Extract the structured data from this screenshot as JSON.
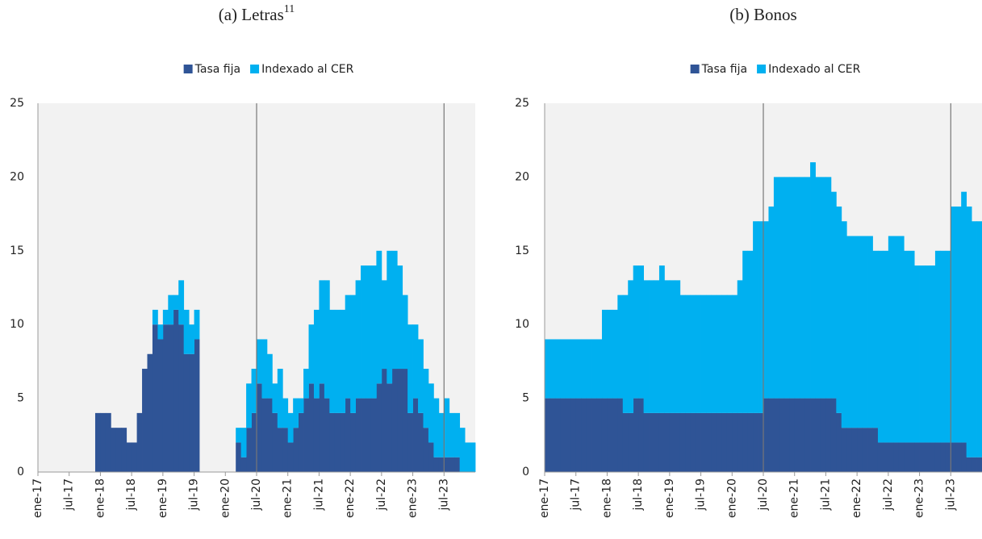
{
  "chart_data": [
    {
      "type": "bar",
      "stacked": true,
      "title": "(a) Letras",
      "title_superscript": "11",
      "categories": [
        "ene-17",
        null,
        null,
        null,
        null,
        null,
        "jul-17",
        null,
        null,
        null,
        null,
        null,
        "ene-18",
        null,
        null,
        null,
        null,
        null,
        "jul-18",
        null,
        null,
        null,
        null,
        null,
        "ene-19",
        null,
        null,
        null,
        null,
        null,
        "jul-19",
        null,
        null,
        null,
        null,
        null,
        "ene-20",
        null,
        null,
        null,
        null,
        null,
        "jul-20",
        null,
        null,
        null,
        null,
        null,
        "ene-21",
        null,
        null,
        null,
        null,
        null,
        "jul-21",
        null,
        null,
        null,
        null,
        null,
        "ene-22",
        null,
        null,
        null,
        null,
        null,
        "jul-22",
        null,
        null,
        null,
        null,
        null,
        "ene-23",
        null,
        null,
        null,
        null,
        null,
        "jul-23",
        null,
        null,
        null,
        null,
        null
      ],
      "series": [
        {
          "name": "Tasa fija",
          "color": "#2f5496",
          "values": [
            0,
            0,
            0,
            0,
            0,
            0,
            0,
            0,
            0,
            0,
            0,
            4,
            4,
            4,
            3,
            3,
            3,
            2,
            2,
            4,
            7,
            8,
            10,
            9,
            10,
            10,
            11,
            10,
            8,
            8,
            9,
            0,
            0,
            0,
            0,
            0,
            0,
            0,
            2,
            1,
            3,
            4,
            6,
            5,
            5,
            4,
            3,
            3,
            2,
            3,
            4,
            5,
            6,
            5,
            6,
            5,
            4,
            4,
            4,
            5,
            4,
            5,
            5,
            5,
            5,
            6,
            7,
            6,
            7,
            7,
            7,
            4,
            5,
            4,
            3,
            2,
            1,
            1,
            1,
            1,
            1,
            0,
            0,
            0
          ]
        },
        {
          "name": "Indexado al CER",
          "color": "#00b0f0",
          "values": [
            0,
            0,
            0,
            0,
            0,
            0,
            0,
            0,
            0,
            0,
            0,
            0,
            0,
            0,
            0,
            0,
            0,
            0,
            0,
            0,
            0,
            0,
            1,
            1,
            1,
            2,
            1,
            3,
            3,
            2,
            2,
            0,
            0,
            0,
            0,
            0,
            0,
            0,
            1,
            2,
            3,
            3,
            3,
            4,
            3,
            2,
            4,
            2,
            2,
            2,
            1,
            2,
            4,
            6,
            7,
            8,
            7,
            7,
            7,
            7,
            8,
            8,
            9,
            9,
            9,
            9,
            6,
            9,
            8,
            7,
            5,
            6,
            5,
            5,
            4,
            4,
            4,
            3,
            4,
            3,
            3,
            3,
            2,
            2
          ]
        }
      ],
      "ylim": [
        0,
        25
      ],
      "yticks": [
        0,
        5,
        10,
        15,
        20,
        25
      ],
      "grid": false,
      "legend": "top",
      "vlines": [
        "jul-20",
        "jul-23"
      ]
    },
    {
      "type": "bar",
      "stacked": true,
      "title": "(b) Bonos",
      "categories": [
        "ene-17",
        null,
        null,
        null,
        null,
        null,
        "jul-17",
        null,
        null,
        null,
        null,
        null,
        "ene-18",
        null,
        null,
        null,
        null,
        null,
        "jul-18",
        null,
        null,
        null,
        null,
        null,
        "ene-19",
        null,
        null,
        null,
        null,
        null,
        "jul-19",
        null,
        null,
        null,
        null,
        null,
        "ene-20",
        null,
        null,
        null,
        null,
        null,
        "jul-20",
        null,
        null,
        null,
        null,
        null,
        "ene-21",
        null,
        null,
        null,
        null,
        null,
        "jul-21",
        null,
        null,
        null,
        null,
        null,
        "ene-22",
        null,
        null,
        null,
        null,
        null,
        "jul-22",
        null,
        null,
        null,
        null,
        null,
        "ene-23",
        null,
        null,
        null,
        null,
        null,
        "jul-23",
        null,
        null,
        null,
        null,
        null
      ],
      "series": [
        {
          "name": "Tasa fija",
          "color": "#2f5496",
          "values": [
            5,
            5,
            5,
            5,
            5,
            5,
            5,
            5,
            5,
            5,
            5,
            5,
            5,
            5,
            5,
            4,
            4,
            5,
            5,
            4,
            4,
            4,
            4,
            4,
            4,
            4,
            4,
            4,
            4,
            4,
            4,
            4,
            4,
            4,
            4,
            4,
            4,
            4,
            4,
            4,
            4,
            4,
            5,
            5,
            5,
            5,
            5,
            5,
            5,
            5,
            5,
            5,
            5,
            5,
            5,
            5,
            4,
            3,
            3,
            3,
            3,
            3,
            3,
            3,
            2,
            2,
            2,
            2,
            2,
            2,
            2,
            2,
            2,
            2,
            2,
            2,
            2,
            2,
            2,
            2,
            2,
            1,
            1,
            1
          ]
        },
        {
          "name": "Indexado al CER",
          "color": "#00b0f0",
          "values": [
            4,
            4,
            4,
            4,
            4,
            4,
            4,
            4,
            4,
            4,
            4,
            6,
            6,
            6,
            7,
            8,
            9,
            9,
            9,
            9,
            9,
            9,
            10,
            9,
            9,
            9,
            8,
            8,
            8,
            8,
            8,
            8,
            8,
            8,
            8,
            8,
            8,
            9,
            11,
            11,
            13,
            13,
            12,
            13,
            15,
            15,
            15,
            15,
            15,
            15,
            15,
            16,
            15,
            15,
            15,
            14,
            14,
            14,
            13,
            13,
            13,
            13,
            13,
            12,
            13,
            13,
            14,
            14,
            14,
            13,
            13,
            12,
            12,
            12,
            12,
            13,
            13,
            13,
            16,
            16,
            17,
            17,
            16,
            16
          ]
        }
      ],
      "ylim": [
        0,
        25
      ],
      "yticks": [
        0,
        5,
        10,
        15,
        20,
        25
      ],
      "grid": false,
      "legend": "top",
      "vlines": [
        "jul-20",
        "jul-23"
      ]
    }
  ]
}
